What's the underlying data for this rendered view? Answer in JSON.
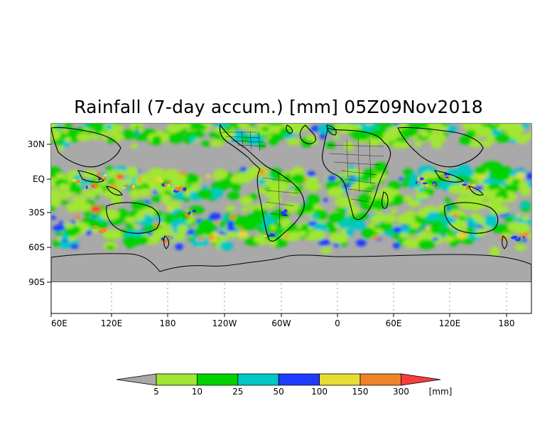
{
  "title": "Rainfall (7-day accum.) [mm] 05Z09Nov2018",
  "map": {
    "lon_ticks": [
      "60E",
      "120E",
      "180",
      "120W",
      "60W",
      "0",
      "60E",
      "120E",
      "180"
    ],
    "lat_ticks": [
      "30N",
      "EQ",
      "30S",
      "60S",
      "90S"
    ],
    "ocean_color": "#a9a9a9",
    "coastline_color": "#000000"
  },
  "legend": {
    "unit": "[mm]",
    "labels": [
      "5",
      "10",
      "25",
      "50",
      "100",
      "150",
      "300"
    ],
    "colors": [
      "#a9a9a9",
      "#a0e632",
      "#00d200",
      "#00c8c8",
      "#1e3cff",
      "#e6dc32",
      "#f08228",
      "#fa3c3c"
    ]
  }
}
